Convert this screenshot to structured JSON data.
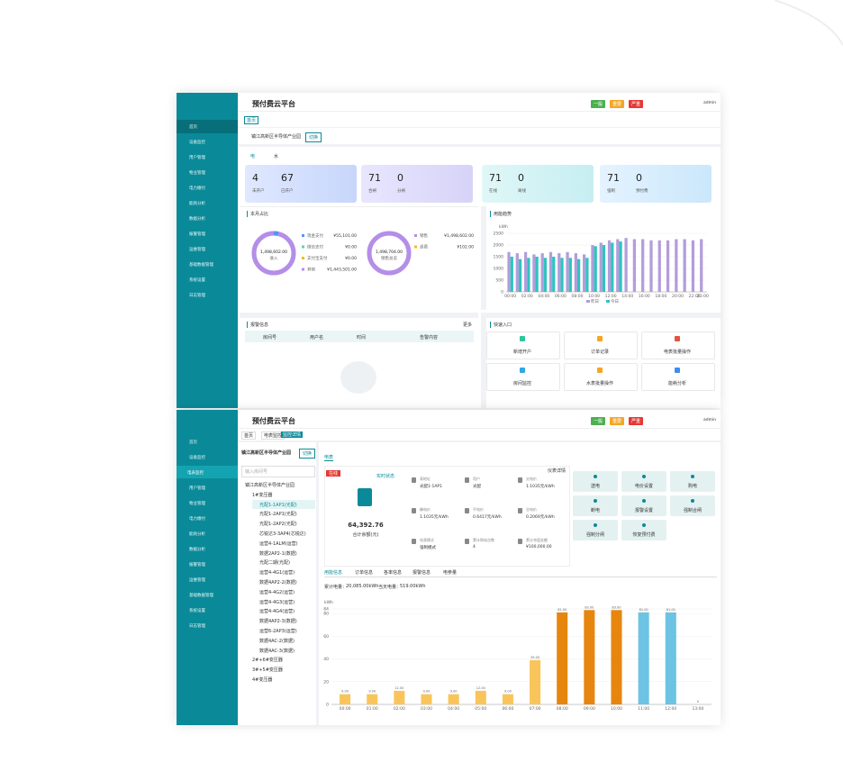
{
  "top": {
    "title": "预付费云平台",
    "alerts": [
      "一般",
      "重要",
      "严重"
    ],
    "user": "admin",
    "menu": [
      "首页",
      "设备监控",
      "用户管理",
      "物业管理",
      "电力缴付",
      "能耗分析",
      "数据分析",
      "报警管理",
      "运维管理",
      "基础数据管理",
      "系统设置",
      "日志管理"
    ],
    "tab": "首页",
    "park": "镇江高新区半导体产业园",
    "switch": "切换",
    "energy_tabs": [
      "电",
      "水"
    ],
    "cards": [
      {
        "items": [
          {
            "value": 4,
            "label": "未开户"
          },
          {
            "value": 67,
            "label": "已开户"
          }
        ]
      },
      {
        "items": [
          {
            "value": 71,
            "label": "合闸"
          },
          {
            "value": 0,
            "label": "分闸"
          }
        ]
      },
      {
        "items": [
          {
            "value": 71,
            "label": "在线"
          },
          {
            "value": 0,
            "label": "离线"
          }
        ]
      },
      {
        "items": [
          {
            "value": 71,
            "label": "强制"
          },
          {
            "value": 0,
            "label": "预付费"
          }
        ]
      }
    ],
    "share": {
      "title": "本月占比",
      "donuts": [
        {
          "total": "1,498,602.00",
          "caption": "收入",
          "items": [
            {
              "name": "现金支付",
              "value": 55101,
              "label": "¥55,101.00",
              "color": "#5b8ff9"
            },
            {
              "name": "微信支付",
              "value": 0,
              "label": "¥0.00",
              "color": "#5ad8a6"
            },
            {
              "name": "支付宝支付",
              "value": 0,
              "label": "¥0.00",
              "color": "#f6bd16"
            },
            {
              "name": "其他",
              "value": 1443501,
              "label": "¥1,443,501.00",
              "color": "#b48ee8"
            }
          ]
        },
        {
          "total": "1,498,704.00",
          "caption": "销售总览",
          "items": [
            {
              "name": "销售",
              "value": 1498602,
              "label": "¥1,498,602.00",
              "color": "#b48ee8"
            },
            {
              "name": "退费",
              "value": 102,
              "label": "¥102.00",
              "color": "#f6bd16"
            }
          ]
        }
      ]
    },
    "trend": {
      "title": "用能趋势",
      "type": "bar",
      "unit": "kWh",
      "categories": [
        "00:00",
        null,
        "02:00",
        null,
        "04:00",
        null,
        "06:00",
        null,
        "08:00",
        null,
        "10:00",
        null,
        "12:00",
        null,
        "14:00",
        null,
        "16:00",
        null,
        "18:00",
        null,
        "20:00",
        null,
        "22:00",
        "23:00"
      ],
      "ylim": [
        0,
        2500
      ],
      "yticks": [
        0,
        500,
        1000,
        1500,
        2000,
        2500
      ],
      "series": [
        {
          "name": "昨日",
          "color": "#b39ddb",
          "values": [
            1700,
            1650,
            1700,
            1600,
            1650,
            1700,
            1650,
            1700,
            1650,
            1600,
            2000,
            2100,
            2200,
            2250,
            2300,
            2250,
            2250,
            2200,
            2200,
            2200,
            2250,
            2250,
            2200,
            2250
          ]
        },
        {
          "name": "今日",
          "color": "#2ec4c0",
          "values": [
            1500,
            1400,
            1450,
            1500,
            1450,
            1500,
            1450,
            1450,
            1400,
            1450,
            1950,
            2000,
            2100,
            2150,
            null,
            null,
            null,
            null,
            null,
            null,
            null,
            null,
            null,
            null
          ]
        }
      ]
    },
    "alarm": {
      "title": "报警信息",
      "more": "更多",
      "columns": [
        "房间号",
        "用户名",
        "时间",
        "告警内容"
      ]
    },
    "quick": {
      "title": "快速入口",
      "items": [
        "新增开户",
        "订单记录",
        "电表批量操作",
        "房间监控",
        "水表批量操作",
        "能耗分析"
      ]
    }
  },
  "bottom": {
    "title": "预付费云平台",
    "alerts": [
      "一般",
      "重要",
      "严重"
    ],
    "user": "admin",
    "tabs": [
      "首页",
      "电表监控",
      "监控详情"
    ],
    "menu": [
      "首页",
      "设备监控",
      "用户管理",
      "物业管理",
      "电力缴付",
      "能耗分析",
      "数据分析",
      "报警管理",
      "运维管理",
      "基础数据管理",
      "系统设置",
      "日志管理"
    ],
    "submenu": "电表监控",
    "tree": {
      "title": "镇江高新区半导体产业园",
      "switch": "切换",
      "search": "输入房间号",
      "nodes": [
        "镇江高新区半导体产业园",
        "1#变压器",
        "光配1-1AP1(光配)",
        "光配1-2AP1(光配)",
        "光配1-2AP2(光配)",
        "芯锐达3-3AP4(芯锐达)",
        "运营4-1ALM(运营)",
        "数据2AP2-1(数据)",
        "光配二期(光配)",
        "运营4-4G1(运营)",
        "数据4AP2-2(数据)",
        "运营4-4G2(运营)",
        "运营4-4G3(运营)",
        "运营4-4G4(运营)",
        "数据4AP2-3(数据)",
        "运营6-2AP3(运营)",
        "数据4AC-2(数据)",
        "数据4AC-3(数据)",
        "2#+6#变压器",
        "3#+5#变压器",
        "4#变压器"
      ]
    },
    "meter": {
      "tab": "电表",
      "status": "在线",
      "realtime": "实时状态",
      "remain": "64,392.76",
      "remain_label": "合计余额(元)",
      "detail": "仪表详情",
      "fields": [
        {
          "label": "表地址",
          "value": "光配1-1AP1"
        },
        {
          "label": "用户",
          "value": "光配"
        },
        {
          "label": "尖电价",
          "value": "1.1035元/kWh"
        },
        {
          "label": "峰电价",
          "value": "1.1035元/kWh"
        },
        {
          "label": "平电价",
          "value": "0.6417元/kWh"
        },
        {
          "label": "谷电价",
          "value": "0.2069元/kWh"
        },
        {
          "label": "电表模式",
          "value": "强制模式"
        },
        {
          "label": "累计购电次数",
          "value": "4"
        },
        {
          "label": "累计充值金额",
          "value": "¥100,000.00"
        }
      ],
      "buttons": [
        "送电",
        "电价设置",
        "购电",
        "断电",
        "报警设置",
        "强制合闸",
        "强制分闸",
        "恢复预付费"
      ]
    },
    "info_tabs": [
      "用能信息",
      "订单信息",
      "各率信息",
      "报警信息",
      "电参量"
    ],
    "totals": [
      {
        "label": "累计电量：",
        "value": "20,085.00kWh"
      },
      {
        "label": "当天电量：",
        "value": "519.00kWh"
      }
    ],
    "usage": {
      "type": "bar",
      "unit": "kWh",
      "categories": [
        "00:00",
        "01:00",
        "02:00",
        "03:00",
        "04:00",
        "05:00",
        "06:00",
        "07:00",
        "08:00",
        "09:00",
        "10:00",
        "11:00",
        "12:00",
        "13:00"
      ],
      "values": [
        9,
        9,
        12,
        9,
        9,
        12,
        9,
        39,
        81,
        83,
        83,
        81,
        81,
        0
      ],
      "value_labels": [
        "9.00",
        "9.00",
        "12.00",
        "9.00",
        "9.00",
        "12.00",
        "9.00",
        "39.00",
        "81.00",
        "83.00",
        "83.00",
        "81.00",
        "81.00",
        "0"
      ],
      "colors": [
        "#f9c55b",
        "#f9c55b",
        "#f9c55b",
        "#f9c55b",
        "#f9c55b",
        "#f9c55b",
        "#f9c55b",
        "#f9c55b",
        "#e6860f",
        "#e6860f",
        "#e6860f",
        "#6cc3e3",
        "#6cc3e3",
        "#6cc3e3"
      ],
      "ylim": [
        0,
        84
      ],
      "yticks": [
        0,
        20,
        40,
        60,
        80,
        84
      ]
    }
  }
}
